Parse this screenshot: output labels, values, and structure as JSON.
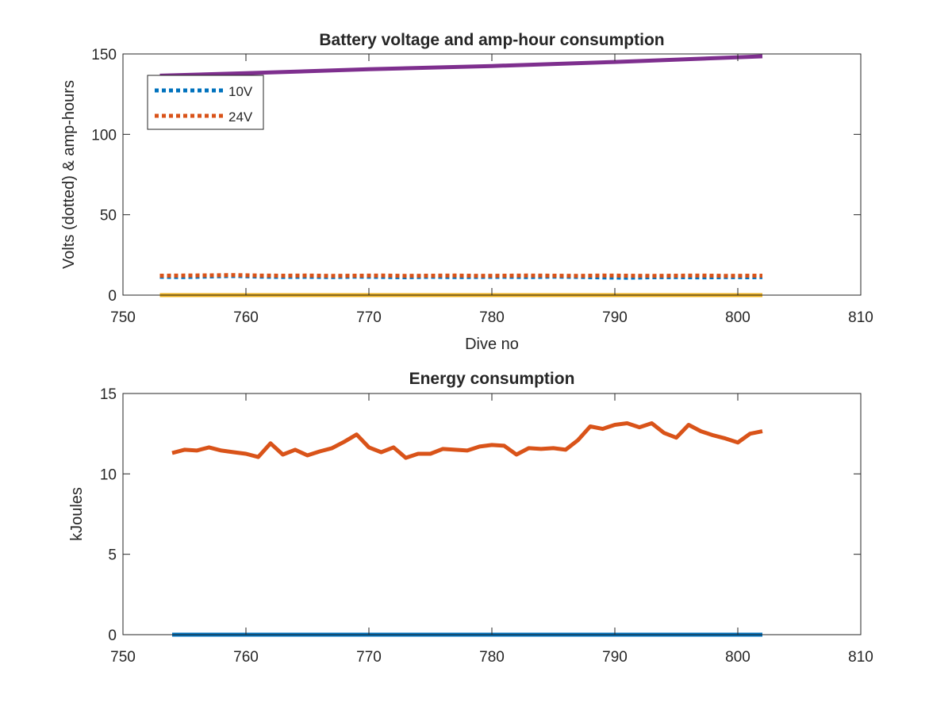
{
  "chart_data": [
    {
      "type": "line",
      "title": "Battery voltage and amp-hour consumption",
      "xlabel": "Dive no",
      "ylabel": "Volts (dotted) & amp-hours",
      "xlim": [
        750,
        810
      ],
      "ylim": [
        0,
        150
      ],
      "xticks": [
        750,
        760,
        770,
        780,
        790,
        800,
        810
      ],
      "yticks": [
        0,
        50,
        100,
        150
      ],
      "grid": false,
      "legend": {
        "placement": "top-left",
        "entries": [
          "10V",
          "24V"
        ]
      },
      "series": [
        {
          "name": "10V",
          "style": "dotted",
          "color": "#0072BD",
          "x": [
            753,
            755,
            757,
            759,
            761,
            763,
            765,
            767,
            769,
            771,
            773,
            775,
            777,
            779,
            781,
            783,
            785,
            787,
            789,
            791,
            793,
            795,
            797,
            799,
            801,
            802
          ],
          "y": [
            11.4,
            11.2,
            11.6,
            11.9,
            11.5,
            11.3,
            11.4,
            11.2,
            11.5,
            11.3,
            11.1,
            11.4,
            11.2,
            11.3,
            11.4,
            11.2,
            11.5,
            11.3,
            11.0,
            10.8,
            11.1,
            11.2,
            11.0,
            11.2,
            11.1,
            11.2
          ]
        },
        {
          "name": "24V",
          "style": "dotted",
          "color": "#D95319",
          "x": [
            753,
            755,
            757,
            759,
            761,
            763,
            765,
            767,
            769,
            771,
            773,
            775,
            777,
            779,
            781,
            783,
            785,
            787,
            789,
            791,
            793,
            795,
            797,
            799,
            801,
            802
          ],
          "y": [
            12.1,
            12.2,
            12.3,
            12.5,
            12.2,
            12.1,
            12.2,
            12.0,
            12.1,
            12.2,
            12.0,
            12.1,
            12.2,
            12.0,
            12.1,
            12.2,
            12.1,
            12.0,
            12.2,
            12.1,
            12.0,
            12.1,
            12.2,
            12.0,
            12.1,
            12.1
          ]
        },
        {
          "style": "solid",
          "color": "#EDB120",
          "x": [
            753,
            802
          ],
          "y": [
            0,
            0
          ]
        },
        {
          "style": "solid",
          "color": "#7E2F8E",
          "x": [
            753,
            760,
            770,
            780,
            790,
            802
          ],
          "y": [
            136.5,
            138,
            140.5,
            142.5,
            145,
            148.5
          ]
        }
      ]
    },
    {
      "type": "line",
      "title": "Energy consumption",
      "xlabel": "",
      "ylabel": "kJoules",
      "xlim": [
        750,
        810
      ],
      "ylim": [
        0,
        15
      ],
      "xticks": [
        750,
        760,
        770,
        780,
        790,
        800,
        810
      ],
      "yticks": [
        0,
        5,
        10,
        15
      ],
      "grid": false,
      "series": [
        {
          "style": "solid",
          "color": "#0072BD",
          "x": [
            754,
            802
          ],
          "y": [
            0,
            0
          ]
        },
        {
          "style": "solid",
          "color": "#D95319",
          "x": [
            754,
            755,
            756,
            757,
            758,
            759,
            760,
            761,
            762,
            763,
            764,
            765,
            766,
            767,
            768,
            769,
            770,
            771,
            772,
            773,
            774,
            775,
            776,
            777,
            778,
            779,
            780,
            781,
            782,
            783,
            784,
            785,
            786,
            787,
            788,
            789,
            790,
            791,
            792,
            793,
            794,
            795,
            796,
            797,
            798,
            799,
            800,
            801,
            802
          ],
          "y": [
            11.3,
            11.5,
            11.45,
            11.65,
            11.45,
            11.35,
            11.25,
            11.05,
            11.9,
            11.2,
            11.5,
            11.15,
            11.4,
            11.6,
            12.0,
            12.45,
            11.65,
            11.35,
            11.65,
            11.0,
            11.25,
            11.25,
            11.55,
            11.5,
            11.45,
            11.7,
            11.8,
            11.75,
            11.2,
            11.6,
            11.55,
            11.6,
            11.5,
            12.1,
            12.95,
            12.8,
            13.05,
            13.15,
            12.9,
            13.15,
            12.55,
            12.25,
            13.05,
            12.65,
            12.4,
            12.2,
            11.95,
            12.5,
            12.65
          ]
        }
      ]
    }
  ]
}
